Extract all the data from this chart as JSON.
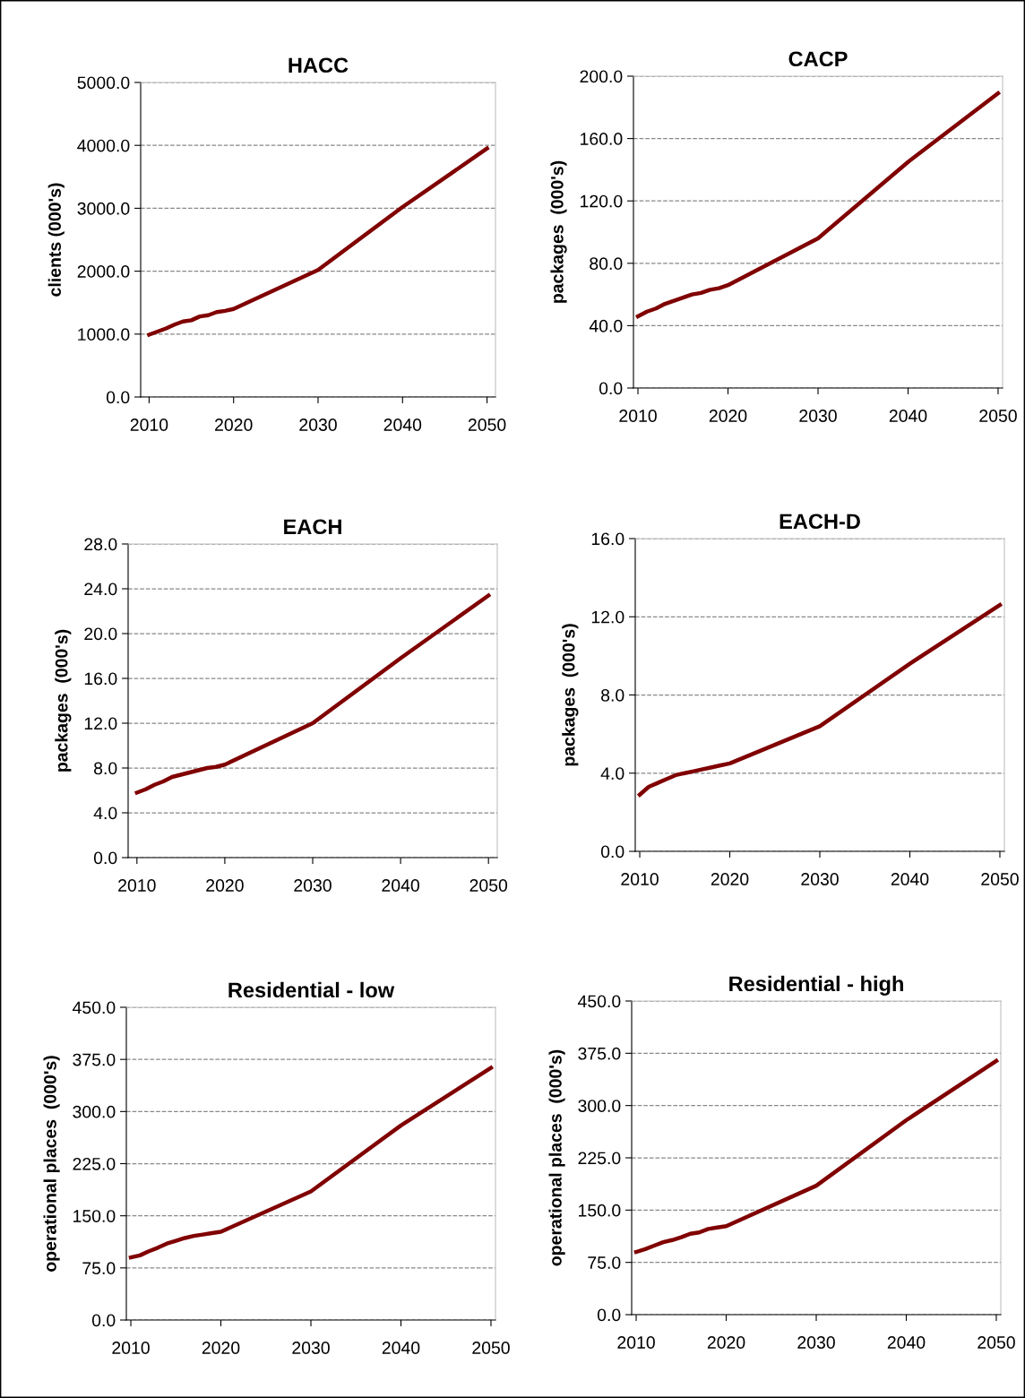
{
  "chart_data": [
    {
      "type": "line",
      "title": "HACC",
      "ylabel": "clients (000's)",
      "x": [
        2010,
        2011,
        2012,
        2013,
        2014,
        2015,
        2016,
        2017,
        2018,
        2019,
        2020,
        2030,
        2040,
        2050
      ],
      "series": [
        {
          "color": "#800000",
          "values": [
            990,
            1040,
            1090,
            1150,
            1200,
            1220,
            1280,
            1300,
            1350,
            1370,
            1400,
            2020,
            3020,
            3950
          ]
        }
      ],
      "xlim": [
        2009,
        2051
      ],
      "xticks": [
        2010,
        2020,
        2030,
        2040,
        2050
      ],
      "ylim": [
        0,
        5000
      ],
      "yticks": [
        {
          "value": 0,
          "label": "0.0"
        },
        {
          "value": 1000,
          "label": "1000.0"
        },
        {
          "value": 2000,
          "label": "2000.0"
        },
        {
          "value": 3000,
          "label": "3000.0"
        },
        {
          "value": 4000,
          "label": "4000.0"
        },
        {
          "value": 5000,
          "label": "5000.0"
        }
      ],
      "grid": "y",
      "marker": "none",
      "line_style": "solid"
    },
    {
      "type": "line",
      "title": "CACP",
      "ylabel": "packages  (000's)",
      "x": [
        2010,
        2011,
        2012,
        2013,
        2014,
        2015,
        2016,
        2017,
        2018,
        2019,
        2020,
        2030,
        2040,
        2050
      ],
      "series": [
        {
          "color": "#800000",
          "values": [
            46,
            49,
            51,
            54,
            56,
            58,
            60,
            61,
            63,
            64,
            66,
            96,
            145,
            189
          ]
        }
      ],
      "xlim": [
        2009.5,
        2050.5
      ],
      "xticks": [
        2010,
        2020,
        2030,
        2040,
        2050
      ],
      "ylim": [
        0,
        200
      ],
      "yticks": [
        {
          "value": 0,
          "label": "0.0"
        },
        {
          "value": 40,
          "label": "40.0"
        },
        {
          "value": 80,
          "label": "80.0"
        },
        {
          "value": 120,
          "label": "120.0"
        },
        {
          "value": 160,
          "label": "160.0"
        },
        {
          "value": 200,
          "label": "200.0"
        }
      ],
      "grid": "y",
      "marker": "none",
      "line_style": "solid"
    },
    {
      "type": "line",
      "title": "EACH",
      "ylabel": "packages  (000's)",
      "x": [
        2010,
        2011,
        2012,
        2013,
        2014,
        2015,
        2016,
        2017,
        2018,
        2019,
        2020,
        2030,
        2040,
        2050
      ],
      "series": [
        {
          "color": "#800000",
          "values": [
            5.8,
            6.1,
            6.5,
            6.8,
            7.2,
            7.4,
            7.6,
            7.8,
            8.0,
            8.1,
            8.3,
            12.0,
            17.8,
            23.4
          ]
        }
      ],
      "xlim": [
        2009,
        2051
      ],
      "xticks": [
        2010,
        2020,
        2030,
        2040,
        2050
      ],
      "ylim": [
        0,
        28
      ],
      "yticks": [
        {
          "value": 0,
          "label": "0.0"
        },
        {
          "value": 4,
          "label": "4.0"
        },
        {
          "value": 8,
          "label": "8.0"
        },
        {
          "value": 12,
          "label": "12.0"
        },
        {
          "value": 16,
          "label": "16.0"
        },
        {
          "value": 20,
          "label": "20.0"
        },
        {
          "value": 24,
          "label": "24.0"
        },
        {
          "value": 28,
          "label": "28.0"
        }
      ],
      "grid": "y",
      "marker": "none",
      "line_style": "solid"
    },
    {
      "type": "line",
      "title": "EACH-D",
      "ylabel": "packages  (000's)",
      "x": [
        2010,
        2011,
        2012,
        2013,
        2014,
        2015,
        2016,
        2017,
        2018,
        2019,
        2020,
        2030,
        2040,
        2050
      ],
      "series": [
        {
          "color": "#800000",
          "values": [
            2.9,
            3.3,
            3.5,
            3.7,
            3.9,
            4.0,
            4.1,
            4.2,
            4.3,
            4.4,
            4.5,
            6.4,
            9.6,
            12.6
          ]
        }
      ],
      "xlim": [
        2009.5,
        2050.5
      ],
      "xticks": [
        2010,
        2020,
        2030,
        2040,
        2050
      ],
      "ylim": [
        0,
        16
      ],
      "yticks": [
        {
          "value": 0,
          "label": "0.0"
        },
        {
          "value": 4,
          "label": "4.0"
        },
        {
          "value": 8,
          "label": "8.0"
        },
        {
          "value": 12,
          "label": "12.0"
        },
        {
          "value": 16,
          "label": "16.0"
        }
      ],
      "grid": "y",
      "marker": "none",
      "line_style": "solid"
    },
    {
      "type": "line",
      "title": "Residential - low",
      "ylabel": "operational places  (000's)",
      "x": [
        2010,
        2011,
        2012,
        2013,
        2014,
        2015,
        2016,
        2017,
        2018,
        2019,
        2020,
        2030,
        2040,
        2050
      ],
      "series": [
        {
          "color": "#800000",
          "values": [
            90,
            93,
            99,
            104,
            110,
            114,
            118,
            121,
            123,
            125,
            127,
            185,
            280,
            363
          ]
        }
      ],
      "xlim": [
        2009.5,
        2050.5
      ],
      "xticks": [
        2010,
        2020,
        2030,
        2040,
        2050
      ],
      "ylim": [
        0,
        450
      ],
      "yticks": [
        {
          "value": 0,
          "label": "0.0"
        },
        {
          "value": 75,
          "label": "75.0"
        },
        {
          "value": 150,
          "label": "150.0"
        },
        {
          "value": 225,
          "label": "225.0"
        },
        {
          "value": 300,
          "label": "300.0"
        },
        {
          "value": 375,
          "label": "375.0"
        },
        {
          "value": 450,
          "label": "450.0"
        }
      ],
      "grid": "y",
      "marker": "none",
      "line_style": "solid"
    },
    {
      "type": "line",
      "title": "Residential - high",
      "ylabel": "operational places  (000's)",
      "x": [
        2010,
        2011,
        2012,
        2013,
        2014,
        2015,
        2016,
        2017,
        2018,
        2019,
        2020,
        2030,
        2040,
        2050
      ],
      "series": [
        {
          "color": "#800000",
          "values": [
            90,
            94,
            99,
            104,
            107,
            111,
            116,
            118,
            123,
            125,
            127,
            185,
            279,
            364
          ]
        }
      ],
      "xlim": [
        2009.5,
        2050.5
      ],
      "xticks": [
        2010,
        2020,
        2030,
        2040,
        2050
      ],
      "ylim": [
        0,
        450
      ],
      "yticks": [
        {
          "value": 0,
          "label": "0.0"
        },
        {
          "value": 75,
          "label": "75.0"
        },
        {
          "value": 150,
          "label": "150.0"
        },
        {
          "value": 225,
          "label": "225.0"
        },
        {
          "value": 300,
          "label": "300.0"
        },
        {
          "value": 375,
          "label": "375.0"
        },
        {
          "value": 450,
          "label": "450.0"
        }
      ],
      "grid": "y",
      "marker": "none",
      "line_style": "solid"
    }
  ]
}
